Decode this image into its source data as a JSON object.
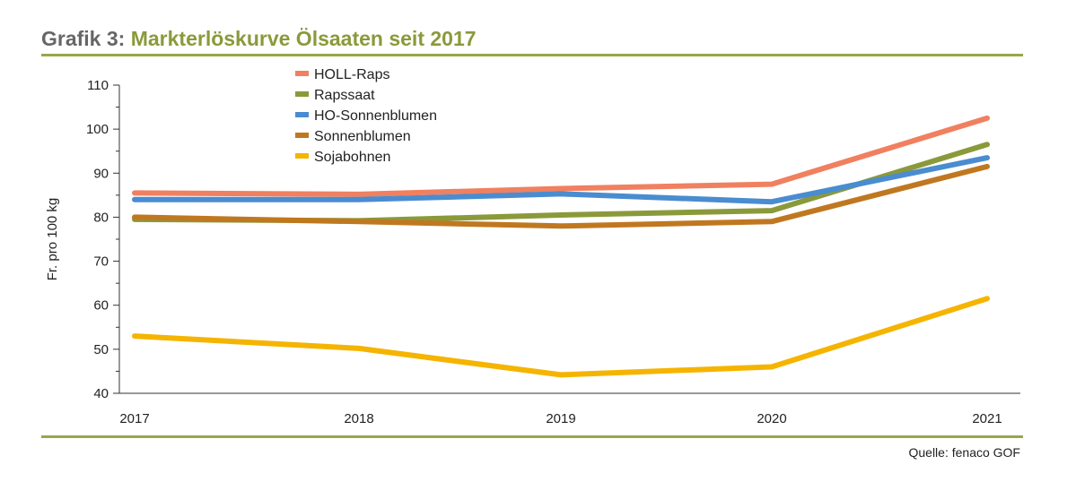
{
  "header": {
    "prefix": "Grafik 3:",
    "title": "Markterlöskurve Ölsaaten seit 2017"
  },
  "footer": {
    "source": "Quelle: fenaco GOF"
  },
  "chart_data": {
    "type": "line",
    "title": "Markterlöskurve Ölsaaten seit 2017",
    "xlabel": "",
    "ylabel": "Fr. pro 100 kg",
    "x": [
      "2017",
      "2018",
      "2019",
      "2020",
      "2021"
    ],
    "ylim": [
      40,
      110
    ],
    "yticks": [
      40,
      50,
      60,
      70,
      80,
      90,
      100,
      110
    ],
    "grid": false,
    "legend_position": "top-center",
    "series": [
      {
        "name": "HOLL-Raps",
        "color": "#f08060",
        "values": [
          85.5,
          85.2,
          86.5,
          87.5,
          102.5
        ]
      },
      {
        "name": "Rapssaat",
        "color": "#8a9a3a",
        "values": [
          79.5,
          79.2,
          80.5,
          81.5,
          96.5
        ]
      },
      {
        "name": "HO-Sonnenblumen",
        "color": "#4a8cd0",
        "values": [
          84,
          84,
          85.3,
          83.5,
          93.5
        ]
      },
      {
        "name": "Sonnenblumen",
        "color": "#c07820",
        "values": [
          80,
          79,
          78,
          79,
          91.5
        ]
      },
      {
        "name": "Sojabohnen",
        "color": "#f5b400",
        "values": [
          53,
          50.2,
          44.2,
          46,
          61.5
        ]
      }
    ]
  }
}
